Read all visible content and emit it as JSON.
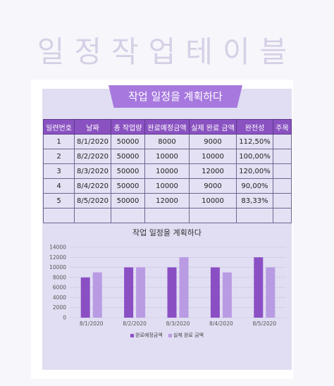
{
  "header": {
    "page_title": "일정작업테이블",
    "sheet_title": "작업 일정을 계획하다"
  },
  "table": {
    "columns": [
      "일련번호",
      "날짜",
      "총 작업량",
      "완료예정금액",
      "실제 완료 금액",
      "완전성",
      "주목"
    ],
    "rows": [
      [
        "1",
        "8/1/2020",
        "50000",
        "8000",
        "9000",
        "112,50%",
        ""
      ],
      [
        "2",
        "8/2/2020",
        "50000",
        "10000",
        "10000",
        "100,00%",
        ""
      ],
      [
        "3",
        "8/3/2020",
        "50000",
        "10000",
        "12000",
        "120,00%",
        ""
      ],
      [
        "4",
        "8/4/2020",
        "50000",
        "10000",
        "9000",
        "90,00%",
        ""
      ],
      [
        "5",
        "8/5/2020",
        "50000",
        "12000",
        "10000",
        "83,33%",
        ""
      ],
      [
        "",
        "",
        "",
        "",
        "",
        "",
        ""
      ]
    ]
  },
  "chart_data": {
    "type": "bar",
    "title": "작업 일정을 계획하다",
    "categories": [
      "8/1/2020",
      "8/2/2020",
      "8/3/2020",
      "8/4/2020",
      "8/5/2020"
    ],
    "series": [
      {
        "name": "완료예정금액",
        "values": [
          8000,
          10000,
          10000,
          10000,
          12000
        ],
        "color": "#8b4fc4"
      },
      {
        "name": "실제 완료 금액",
        "values": [
          9000,
          10000,
          12000,
          9000,
          10000
        ],
        "color": "#b99be3"
      }
    ],
    "ylim": [
      0,
      14000
    ],
    "yticks": [
      0,
      2000,
      4000,
      6000,
      8000,
      10000,
      12000,
      14000
    ],
    "grid": true,
    "legend": "bottom"
  },
  "colors": {
    "header_purple": "#8a52c1",
    "title_banner": "#a779df",
    "sheet_background": "#e1def3"
  }
}
